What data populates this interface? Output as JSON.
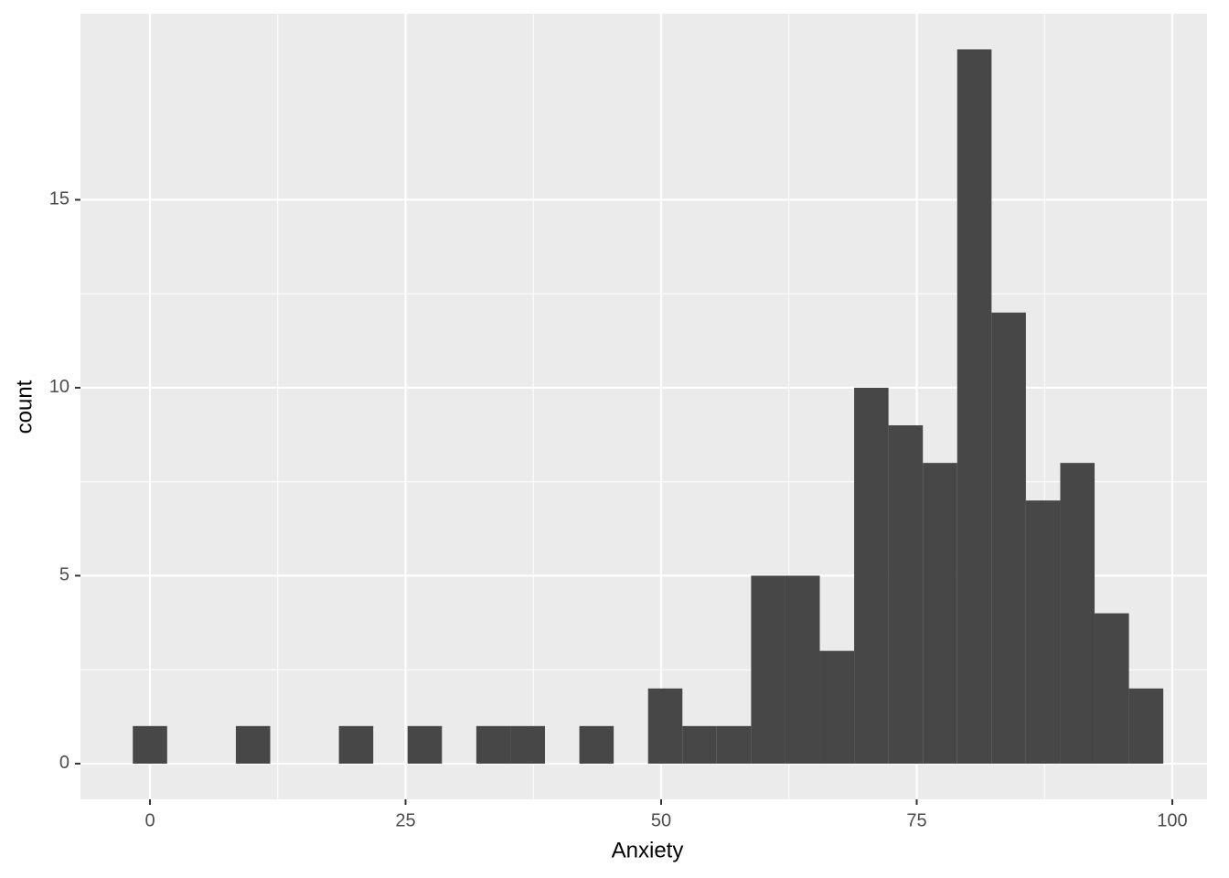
{
  "chart_data": {
    "type": "histogram",
    "x_label": "Anxiety",
    "y_label": "count",
    "bins": [
      -1.68,
      1.68,
      5.04,
      8.4,
      11.76,
      15.12,
      18.48,
      21.84,
      25.2,
      28.56,
      31.92,
      35.28,
      38.64,
      42,
      45.36,
      48.72,
      52.08,
      55.44,
      58.8,
      62.16,
      65.52,
      68.88,
      72.24,
      75.6,
      78.96,
      82.32,
      85.68,
      89.04,
      92.4,
      95.76,
      99.12
    ],
    "values": [
      1,
      0,
      0,
      1,
      0,
      0,
      1,
      0,
      1,
      0,
      1,
      1,
      0,
      1,
      0,
      2,
      1,
      1,
      5,
      5,
      3,
      10,
      9,
      8,
      19,
      12,
      7,
      8,
      4,
      2
    ],
    "color": "#474747",
    "xlim": [
      -6.8,
      103.4
    ],
    "xticks": [
      0,
      25,
      50,
      75,
      100
    ],
    "ylim": [
      -0.95,
      19.95
    ],
    "yticks": [
      0,
      5,
      10,
      15
    ],
    "grid": true
  }
}
